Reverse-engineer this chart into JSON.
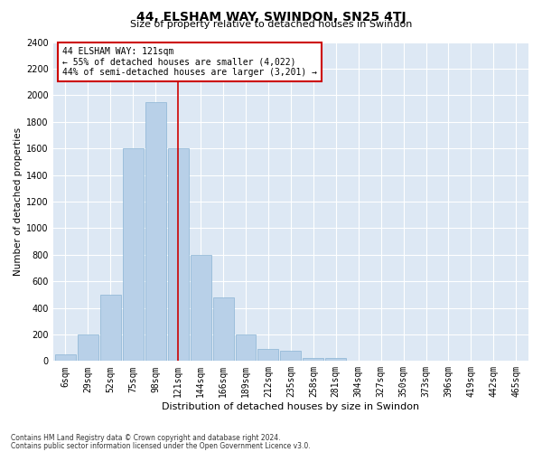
{
  "title": "44, ELSHAM WAY, SWINDON, SN25 4TJ",
  "subtitle": "Size of property relative to detached houses in Swindon",
  "xlabel": "Distribution of detached houses by size in Swindon",
  "ylabel": "Number of detached properties",
  "footnote1": "Contains HM Land Registry data © Crown copyright and database right 2024.",
  "footnote2": "Contains public sector information licensed under the Open Government Licence v3.0.",
  "annotation_line1": "44 ELSHAM WAY: 121sqm",
  "annotation_line2": "← 55% of detached houses are smaller (4,022)",
  "annotation_line3": "44% of semi-detached houses are larger (3,201) →",
  "bar_color": "#b8d0e8",
  "bar_edge_color": "#8ab4d4",
  "vline_color": "#cc0000",
  "annotation_box_color": "#cc0000",
  "bg_color": "#dde8f4",
  "categories": [
    "6sqm",
    "29sqm",
    "52sqm",
    "75sqm",
    "98sqm",
    "121sqm",
    "144sqm",
    "166sqm",
    "189sqm",
    "212sqm",
    "235sqm",
    "258sqm",
    "281sqm",
    "304sqm",
    "327sqm",
    "350sqm",
    "373sqm",
    "396sqm",
    "419sqm",
    "442sqm",
    "465sqm"
  ],
  "values": [
    50,
    200,
    500,
    1600,
    1950,
    1600,
    800,
    480,
    200,
    90,
    80,
    25,
    20,
    5,
    0,
    0,
    0,
    0,
    0,
    0,
    0
  ],
  "ylim": [
    0,
    2400
  ],
  "yticks": [
    0,
    200,
    400,
    600,
    800,
    1000,
    1200,
    1400,
    1600,
    1800,
    2000,
    2200,
    2400
  ],
  "vline_x_index": 5,
  "title_fontsize": 10,
  "subtitle_fontsize": 8,
  "ylabel_fontsize": 7.5,
  "xlabel_fontsize": 8,
  "tick_fontsize": 7,
  "ytick_fontsize": 7,
  "annotation_fontsize": 7,
  "footnote_fontsize": 5.5
}
